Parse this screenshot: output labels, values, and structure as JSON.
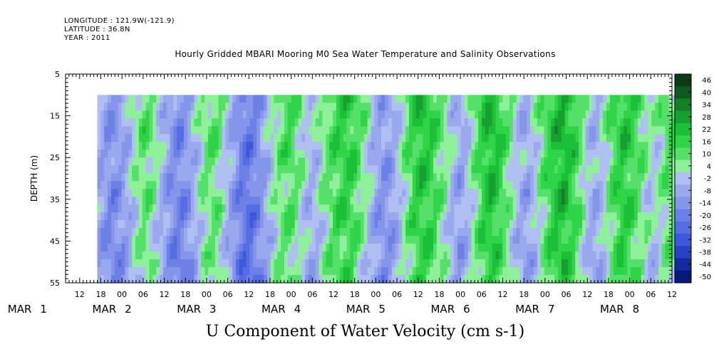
{
  "header": {
    "longitude": "LONGITUDE : 121.9W(-121.9)",
    "latitude": "LATITUDE : 36.8N",
    "year": "YEAR : 2011"
  },
  "chart_data": {
    "type": "heatmap",
    "title": "Hourly Gridded MBARI Mooring M0 Sea Water Temperature and Salinity Observations",
    "bottom_title": "U Component of Water Velocity (cm s-1)",
    "ylabel": "DEPTH (m)",
    "y_axis": {
      "range": [
        5,
        55
      ],
      "inverted": true,
      "ticks": [
        5,
        15,
        25,
        35,
        45,
        55
      ]
    },
    "x_axis": {
      "range_hours": [
        "2011-03-01T08:00",
        "2011-03-08T12:00"
      ],
      "hour_ticks": [
        "12",
        "18",
        "00",
        "06",
        "12",
        "18",
        "00",
        "06",
        "12",
        "18",
        "00",
        "06",
        "12",
        "18",
        "00",
        "06",
        "12",
        "18",
        "00",
        "06",
        "12",
        "18",
        "00",
        "06",
        "12",
        "18",
        "00",
        "06",
        "12",
        "18",
        "00",
        "06"
      ],
      "day_labels": [
        {
          "month": "MAR",
          "day": "1"
        },
        {
          "month": "MAR",
          "day": "2"
        },
        {
          "month": "MAR",
          "day": "3"
        },
        {
          "month": "MAR",
          "day": "4"
        },
        {
          "month": "MAR",
          "day": "5"
        },
        {
          "month": "MAR",
          "day": "6"
        },
        {
          "month": "MAR",
          "day": "7"
        },
        {
          "month": "MAR",
          "day": "8"
        }
      ]
    },
    "data_extent": {
      "start": "2011-03-01T17:00",
      "end": "2011-03-08T16:00",
      "depth_top": 10,
      "depth_bottom": 55
    },
    "colorbar": {
      "labels": [
        "46",
        "40",
        "34",
        "28",
        "22",
        "16",
        "10",
        "4",
        "-2",
        "-8",
        "-14",
        "-20",
        "-26",
        "-32",
        "-38",
        "-44",
        "-50"
      ],
      "colors": [
        "#0a3d14",
        "#0e5a1e",
        "#138028",
        "#17a030",
        "#1cbf38",
        "#2fd447",
        "#55e06a",
        "#8ff09a",
        "#b0bff2",
        "#9aa8ee",
        "#8595ea",
        "#6d80e6",
        "#556de2",
        "#3d58dc",
        "#2742c8",
        "#142aa0",
        "#061878"
      ]
    },
    "velocity_profile_by_time": {
      "note": "approximate dominant U-velocity (cm/s) along time columns, start to end",
      "values": [
        -8,
        -14,
        -16,
        -12,
        -6,
        2,
        8,
        6,
        -2,
        -10,
        -16,
        -18,
        -12,
        -4,
        4,
        8,
        6,
        -4,
        -12,
        -20,
        -24,
        -18,
        -10,
        -2,
        6,
        10,
        8,
        2,
        -6,
        -4,
        4,
        10,
        14,
        16,
        12,
        6,
        -2,
        -10,
        -14,
        -10,
        -4,
        6,
        14,
        18,
        16,
        10,
        4,
        -4,
        -10,
        -6,
        4,
        14,
        20,
        18,
        10,
        2,
        -6,
        -10,
        -4,
        6,
        14,
        20,
        22,
        16,
        8,
        -2,
        -8,
        -4,
        6,
        14,
        18,
        14,
        8,
        2,
        -2,
        4,
        10,
        6,
        -2
      ]
    }
  }
}
